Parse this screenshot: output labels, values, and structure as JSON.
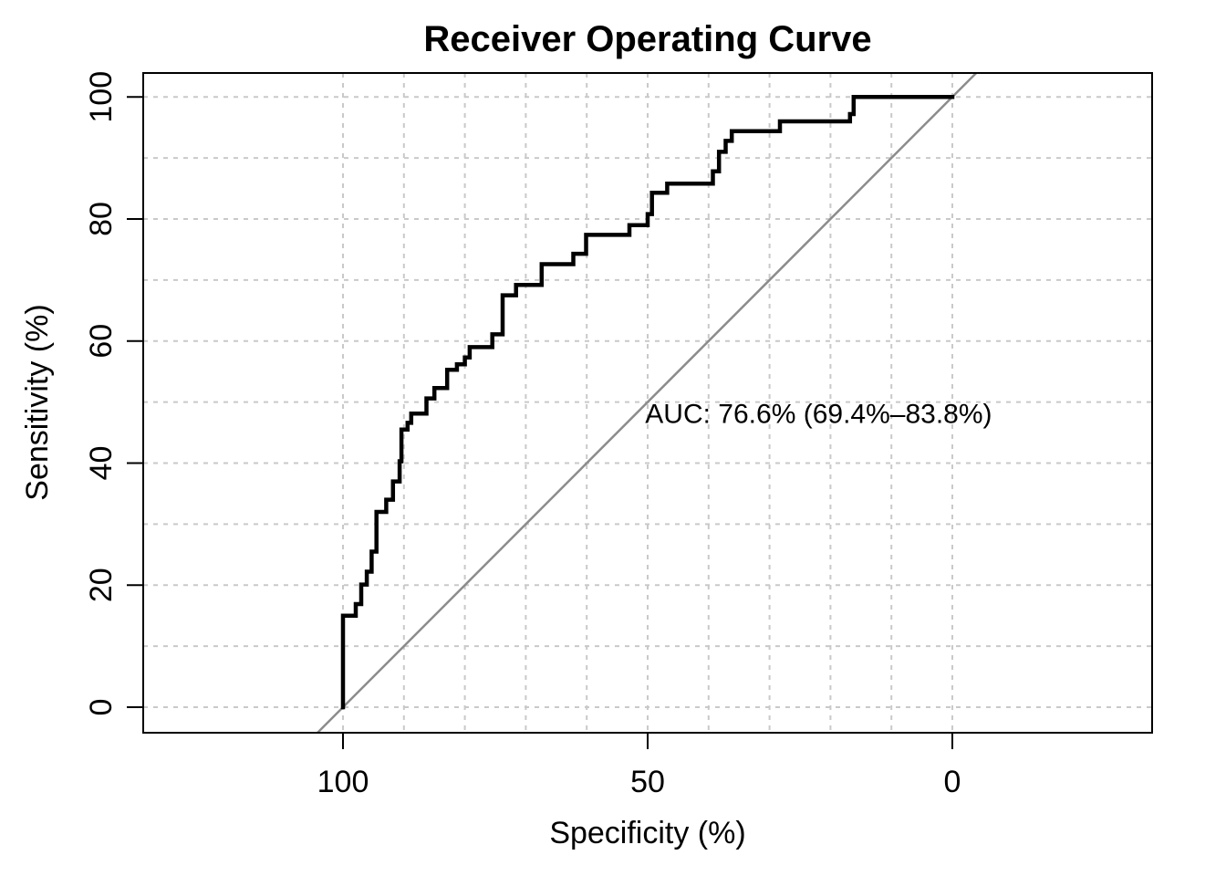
{
  "page": {
    "background": "#ffffff"
  },
  "chart_data": {
    "type": "line",
    "subtype": "roc-step-curve",
    "title": "Receiver Operating Curve",
    "xlabel": "Specificity (%)",
    "ylabel": "Sensitivity (%)",
    "x_axis_reversed": true,
    "xlim": [
      132.8,
      -32.8
    ],
    "ylim": [
      -4.2,
      103.9
    ],
    "x_ticks": [
      "100",
      "50",
      "0"
    ],
    "x_tick_values": [
      100,
      50,
      0
    ],
    "y_ticks": [
      "0",
      "20",
      "40",
      "60",
      "80",
      "100"
    ],
    "y_tick_values": [
      0,
      20,
      40,
      60,
      80,
      100
    ],
    "grid": {
      "on": true,
      "step": 10,
      "range": [
        0,
        100
      ],
      "color": "#c9c9c9",
      "style": "dashed",
      "legend_position": "none"
    },
    "colors": {
      "curve": "#000000",
      "reference_line": "#8c8c8c",
      "box": "#000000",
      "text": "#000000"
    },
    "annotation": {
      "text": "AUC: 76.6% (69.4%–83.8%)",
      "auc_percent": 76.6,
      "ci_low_percent": 69.4,
      "ci_high_percent": 83.8,
      "x": 50.4,
      "y": 46.6
    },
    "reference_line": {
      "name": "chance-diagonal",
      "x1": 104.2,
      "y1": -4.2,
      "x2": -3.9,
      "y2": 103.9
    },
    "series": [
      {
        "name": "ROC curve",
        "points": [
          [
            100,
            0
          ],
          [
            100,
            15
          ],
          [
            97.9,
            15
          ],
          [
            97.9,
            16.9
          ],
          [
            97,
            16.9
          ],
          [
            97,
            20.1
          ],
          [
            96.1,
            20.1
          ],
          [
            96.1,
            22.2
          ],
          [
            95.3,
            22.2
          ],
          [
            95.3,
            25.5
          ],
          [
            94.5,
            25.5
          ],
          [
            94.5,
            32
          ],
          [
            92.9,
            32
          ],
          [
            92.9,
            34
          ],
          [
            91.8,
            34
          ],
          [
            91.8,
            37
          ],
          [
            90.7,
            37
          ],
          [
            90.7,
            40.3
          ],
          [
            90.4,
            40.3
          ],
          [
            90.4,
            45.5
          ],
          [
            89.4,
            45.5
          ],
          [
            89.4,
            46.6
          ],
          [
            88.8,
            46.6
          ],
          [
            88.8,
            48.1
          ],
          [
            86.3,
            48.1
          ],
          [
            86.3,
            50.6
          ],
          [
            85,
            50.6
          ],
          [
            85,
            52.3
          ],
          [
            82.9,
            52.3
          ],
          [
            82.9,
            55.3
          ],
          [
            81.3,
            55.3
          ],
          [
            81.3,
            56.2
          ],
          [
            80,
            56.2
          ],
          [
            80,
            57.3
          ],
          [
            79.2,
            57.3
          ],
          [
            79.2,
            59
          ],
          [
            75.5,
            59
          ],
          [
            75.5,
            61.1
          ],
          [
            73.8,
            61.1
          ],
          [
            73.8,
            67.5
          ],
          [
            71.6,
            67.5
          ],
          [
            71.6,
            69.2
          ],
          [
            67.4,
            69.2
          ],
          [
            67.4,
            72.6
          ],
          [
            62.2,
            72.6
          ],
          [
            62.2,
            74.3
          ],
          [
            60.1,
            74.3
          ],
          [
            60.1,
            77.4
          ],
          [
            53,
            77.4
          ],
          [
            53,
            79
          ],
          [
            50,
            79
          ],
          [
            50,
            80.8
          ],
          [
            49.3,
            80.8
          ],
          [
            49.3,
            84.3
          ],
          [
            46.8,
            84.3
          ],
          [
            46.8,
            85.8
          ],
          [
            39.3,
            85.8
          ],
          [
            39.3,
            87.8
          ],
          [
            38.3,
            87.8
          ],
          [
            38.3,
            91
          ],
          [
            37.2,
            91
          ],
          [
            37.2,
            92.8
          ],
          [
            36.2,
            92.8
          ],
          [
            36.2,
            94.4
          ],
          [
            28.3,
            94.4
          ],
          [
            28.3,
            96
          ],
          [
            16.8,
            96
          ],
          [
            16.8,
            97.2
          ],
          [
            16.2,
            97.2
          ],
          [
            16.2,
            100
          ],
          [
            0,
            100
          ]
        ]
      }
    ]
  }
}
